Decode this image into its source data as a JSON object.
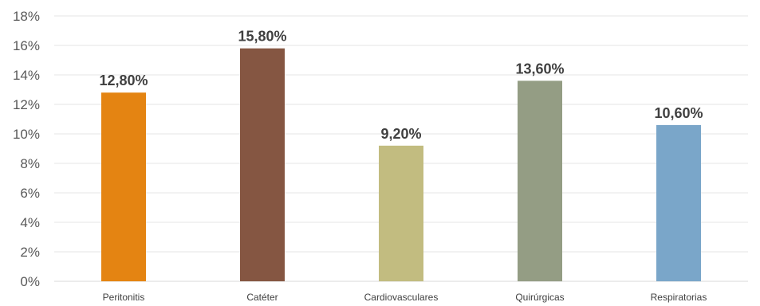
{
  "chart_data": {
    "type": "bar",
    "title": "",
    "xlabel": "",
    "ylabel": "",
    "categories": [
      "Peritonitis",
      "Catéter",
      "Cardiovasculares",
      "Quirúrgicas",
      "Respiratorias"
    ],
    "values": [
      12.8,
      15.8,
      9.2,
      13.6,
      10.6
    ],
    "data_labels": [
      "12,80%",
      "15,80%",
      "9,20%",
      "13,60%",
      "10,60%"
    ],
    "colors": [
      "#e48412",
      "#855642",
      "#c2bc80",
      "#949d84",
      "#7aa6c9"
    ],
    "ylim": [
      0,
      18
    ],
    "yticks": [
      0,
      2,
      4,
      6,
      8,
      10,
      12,
      14,
      16,
      18
    ],
    "ytick_labels": [
      "0%",
      "2%",
      "4%",
      "6%",
      "8%",
      "10%",
      "12%",
      "14%",
      "16%",
      "18%"
    ],
    "grid": true,
    "legend": "none"
  }
}
